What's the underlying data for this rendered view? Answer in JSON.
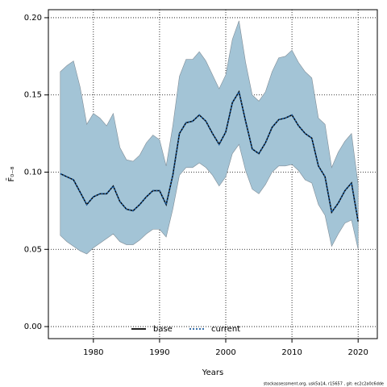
{
  "chart_data": {
    "type": "line",
    "xlabel": "Years",
    "ylabel": "F̄₀₋₈",
    "annotation": "stockassessment.org, usk5a14, r15657 , git: ec2c2a0c6dde",
    "x": [
      1975,
      1976,
      1977,
      1978,
      1979,
      1980,
      1981,
      1982,
      1983,
      1984,
      1985,
      1986,
      1987,
      1988,
      1989,
      1990,
      1991,
      1992,
      1993,
      1994,
      1995,
      1996,
      1997,
      1998,
      1999,
      2000,
      2001,
      2002,
      2003,
      2004,
      2005,
      2006,
      2007,
      2008,
      2009,
      2010,
      2011,
      2012,
      2013,
      2014,
      2015,
      2016,
      2017,
      2018,
      2019,
      2020
    ],
    "band": {
      "color": "#a3c4d6",
      "upper": [
        0.165,
        0.169,
        0.172,
        0.155,
        0.131,
        0.138,
        0.135,
        0.13,
        0.138,
        0.116,
        0.108,
        0.107,
        0.111,
        0.119,
        0.124,
        0.121,
        0.104,
        0.13,
        0.162,
        0.173,
        0.173,
        0.178,
        0.172,
        0.163,
        0.154,
        0.163,
        0.186,
        0.198,
        0.171,
        0.15,
        0.146,
        0.152,
        0.165,
        0.174,
        0.175,
        0.179,
        0.171,
        0.165,
        0.161,
        0.135,
        0.131,
        0.103,
        0.113,
        0.12,
        0.125,
        0.092
      ],
      "lower": [
        0.059,
        0.055,
        0.052,
        0.049,
        0.047,
        0.051,
        0.054,
        0.057,
        0.06,
        0.055,
        0.053,
        0.053,
        0.056,
        0.06,
        0.063,
        0.063,
        0.058,
        0.076,
        0.098,
        0.103,
        0.103,
        0.106,
        0.103,
        0.098,
        0.091,
        0.097,
        0.112,
        0.118,
        0.101,
        0.089,
        0.086,
        0.092,
        0.1,
        0.104,
        0.104,
        0.105,
        0.101,
        0.095,
        0.093,
        0.079,
        0.072,
        0.052,
        0.06,
        0.067,
        0.069,
        0.05
      ]
    },
    "series": [
      {
        "name": "base",
        "color": "#000000",
        "style": "solid",
        "values": [
          0.099,
          0.097,
          0.095,
          0.087,
          0.079,
          0.084,
          0.086,
          0.086,
          0.091,
          0.081,
          0.076,
          0.075,
          0.079,
          0.084,
          0.088,
          0.088,
          0.079,
          0.098,
          0.125,
          0.132,
          0.133,
          0.137,
          0.133,
          0.125,
          0.118,
          0.126,
          0.145,
          0.152,
          0.133,
          0.115,
          0.112,
          0.119,
          0.129,
          0.134,
          0.135,
          0.137,
          0.13,
          0.125,
          0.122,
          0.104,
          0.097,
          0.074,
          0.08,
          0.088,
          0.093,
          0.068
        ]
      },
      {
        "name": "current",
        "color": "#1f5fa0",
        "style": "dotted",
        "values": [
          0.099,
          0.097,
          0.095,
          0.087,
          0.079,
          0.084,
          0.086,
          0.086,
          0.091,
          0.081,
          0.076,
          0.075,
          0.079,
          0.084,
          0.088,
          0.088,
          0.079,
          0.098,
          0.125,
          0.132,
          0.133,
          0.137,
          0.133,
          0.125,
          0.118,
          0.126,
          0.145,
          0.152,
          0.133,
          0.115,
          0.112,
          0.119,
          0.129,
          0.134,
          0.135,
          0.137,
          0.13,
          0.125,
          0.122,
          0.104,
          0.097,
          0.074,
          0.08,
          0.088,
          0.093,
          0.068
        ]
      }
    ],
    "xlim": [
      1973.2,
      2022.9
    ],
    "ylim": [
      -0.0078,
      0.2052
    ],
    "xticks": [
      1980,
      1990,
      2000,
      2010,
      2020
    ],
    "yticks": [
      {
        "value": 0,
        "label": "0.00"
      },
      {
        "value": 0.05,
        "label": "0.05"
      },
      {
        "value": 0.1,
        "label": "0.10"
      },
      {
        "value": 0.15,
        "label": "0.15"
      },
      {
        "value": 0.2,
        "label": "0.20"
      }
    ],
    "grid": true,
    "legend": "bottom"
  }
}
